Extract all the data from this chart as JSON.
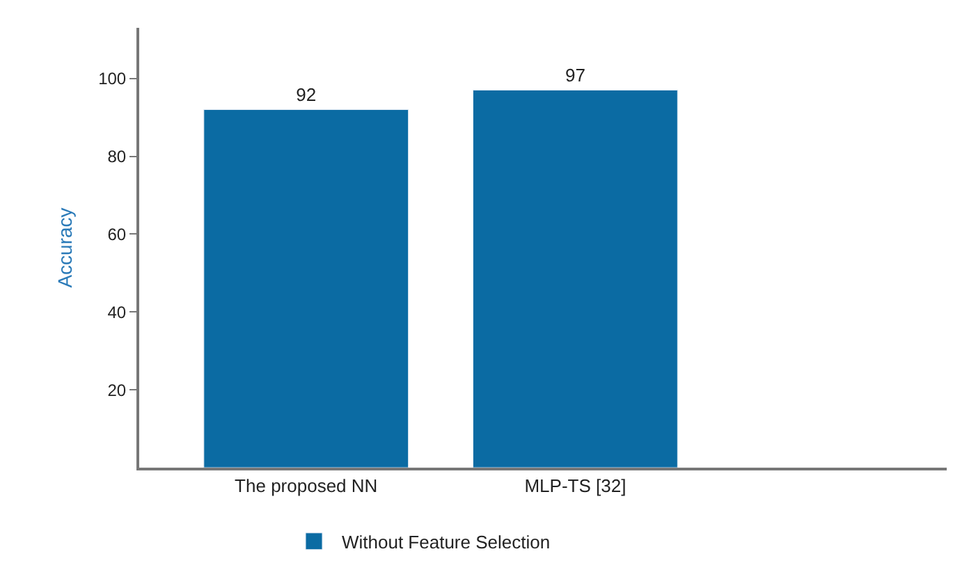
{
  "chart_data": {
    "type": "bar",
    "ylabel": "Accuracy",
    "categories": [
      "The proposed NN",
      "MLP-TS [32]"
    ],
    "series": [
      {
        "name": "Without Feature Selection",
        "color": "#0b6ba3",
        "values": [
          92,
          97
        ]
      }
    ],
    "ylim": [
      0,
      113
    ],
    "yticks": [
      20,
      40,
      60,
      80,
      100
    ],
    "data_labels": true,
    "legend": "bottom"
  }
}
